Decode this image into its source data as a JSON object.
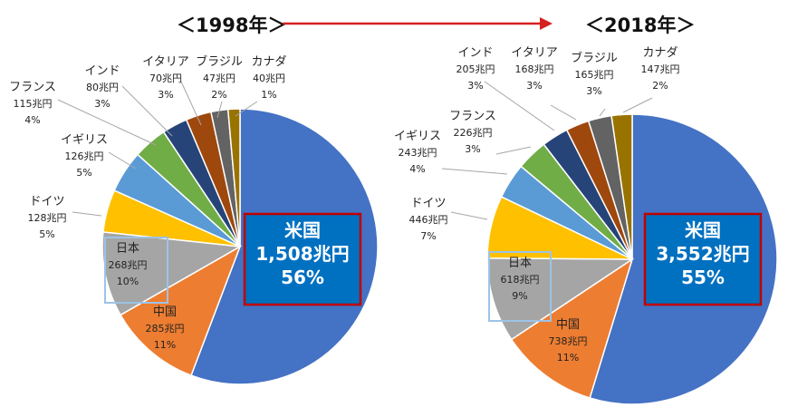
{
  "chart_data": [
    {
      "type": "pie",
      "title": "＜1998年＞",
      "slices": [
        {
          "label": "米国",
          "value_text": "1,508兆円",
          "pct_text": "56%",
          "pct": 56,
          "color": "#4472c4",
          "highlight": true
        },
        {
          "label": "中国",
          "value_text": "285兆円",
          "pct_text": "11%",
          "pct": 11,
          "color": "#ed7d31"
        },
        {
          "label": "日本",
          "value_text": "268兆円",
          "pct_text": "10%",
          "pct": 10,
          "color": "#a5a5a5",
          "boxed": true
        },
        {
          "label": "ドイツ",
          "value_text": "128兆円",
          "pct_text": "5%",
          "pct": 5,
          "color": "#ffc000"
        },
        {
          "label": "イギリス",
          "value_text": "126兆円",
          "pct_text": "5%",
          "pct": 5,
          "color": "#5b9bd5"
        },
        {
          "label": "フランス",
          "value_text": "115兆円",
          "pct_text": "4%",
          "pct": 4,
          "color": "#70ad47"
        },
        {
          "label": "インド",
          "value_text": "80兆円",
          "pct_text": "3%",
          "pct": 3,
          "color": "#264478"
        },
        {
          "label": "イタリア",
          "value_text": "70兆円",
          "pct_text": "3%",
          "pct": 3,
          "color": "#9e480e"
        },
        {
          "label": "ブラジル",
          "value_text": "47兆円",
          "pct_text": "2%",
          "pct": 2,
          "color": "#636363"
        },
        {
          "label": "カナダ",
          "value_text": "40兆円",
          "pct_text": "1%",
          "pct": 1.4,
          "color": "#997300"
        }
      ]
    },
    {
      "type": "pie",
      "title": "＜2018年＞",
      "slices": [
        {
          "label": "米国",
          "value_text": "3,552兆円",
          "pct_text": "55%",
          "pct": 55,
          "color": "#4472c4",
          "highlight": true
        },
        {
          "label": "中国",
          "value_text": "738兆円",
          "pct_text": "11%",
          "pct": 11,
          "color": "#ed7d31"
        },
        {
          "label": "日本",
          "value_text": "618兆円",
          "pct_text": "9%",
          "pct": 9.5,
          "color": "#a5a5a5",
          "boxed": true
        },
        {
          "label": "ドイツ",
          "value_text": "446兆円",
          "pct_text": "7%",
          "pct": 7,
          "color": "#ffc000"
        },
        {
          "label": "イギリス",
          "value_text": "243兆円",
          "pct_text": "4%",
          "pct": 4,
          "color": "#5b9bd5"
        },
        {
          "label": "フランス",
          "value_text": "226兆円",
          "pct_text": "3%",
          "pct": 3.5,
          "color": "#70ad47"
        },
        {
          "label": "インド",
          "value_text": "205兆円",
          "pct_text": "3%",
          "pct": 3,
          "color": "#264478"
        },
        {
          "label": "イタリア",
          "value_text": "168兆円",
          "pct_text": "3%",
          "pct": 2.6,
          "color": "#9e480e"
        },
        {
          "label": "ブラジル",
          "value_text": "165兆円",
          "pct_text": "3%",
          "pct": 2.6,
          "color": "#636363"
        },
        {
          "label": "カナダ",
          "value_text": "147兆円",
          "pct_text": "2%",
          "pct": 2.3,
          "color": "#997300"
        }
      ]
    }
  ],
  "arrow_color": "#d62020",
  "highlight_box_color": "#c00000",
  "japan_box_color": "#9dc3e6"
}
